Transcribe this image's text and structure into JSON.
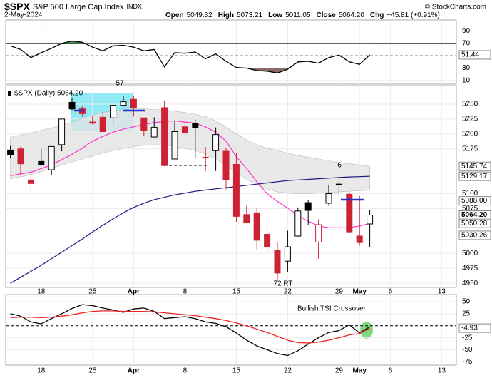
{
  "header": {
    "symbol": "$SPX",
    "name": "S&P 500 Large Cap Index",
    "exchange": "INDX",
    "date": "2-May-2024",
    "quote": [
      {
        "label": "Open",
        "value": "5049.32"
      },
      {
        "label": "High",
        "value": "5073.21"
      },
      {
        "label": "Low",
        "value": "5011.05"
      },
      {
        "label": "Close",
        "value": "5064.20"
      },
      {
        "label": "Chg",
        "value": "+45.81 (+0.91%)"
      }
    ],
    "copyright": "© StockCharts.com"
  },
  "chart_data": [
    {
      "type": "line",
      "ylim": [
        4,
        108
      ],
      "yticks": [
        10,
        30,
        70,
        90
      ],
      "levels": [
        30,
        70
      ],
      "dashed_levels": [
        50
      ],
      "last_value": 51.44,
      "overbought_color": "#4e7d52",
      "oversold_color": "#8c6b66",
      "series": [
        {
          "color": "#000000",
          "values": [
            66,
            60,
            47,
            55,
            62,
            70,
            74,
            72,
            64,
            58,
            66,
            67,
            64,
            58,
            60,
            32,
            55,
            54,
            56,
            45,
            53,
            41,
            31,
            30,
            26,
            25,
            22,
            28,
            40,
            41,
            38,
            47,
            51,
            40,
            36,
            51.44
          ]
        }
      ]
    },
    {
      "type": "candlestick",
      "legend": "$SPX (Daily) 5064.20",
      "x": [
        "2024-03-13",
        "2024-03-14",
        "2024-03-15",
        "2024-03-18",
        "2024-03-19",
        "2024-03-20",
        "2024-03-21",
        "2024-03-22",
        "2024-03-25",
        "2024-03-26",
        "2024-03-27",
        "2024-03-28",
        "2024-04-01",
        "2024-04-02",
        "2024-04-03",
        "2024-04-04",
        "2024-04-05",
        "2024-04-08",
        "2024-04-09",
        "2024-04-10",
        "2024-04-11",
        "2024-04-12",
        "2024-04-15",
        "2024-04-16",
        "2024-04-17",
        "2024-04-18",
        "2024-04-19",
        "2024-04-22",
        "2024-04-23",
        "2024-04-24",
        "2024-04-25",
        "2024-04-26",
        "2024-04-29",
        "2024-04-30",
        "2024-05-01",
        "2024-05-02"
      ],
      "xticks": [
        {
          "value": "2024-03-18",
          "label": "18"
        },
        {
          "value": "2024-03-25",
          "label": "25"
        },
        {
          "value": "2024-04-01",
          "label": "Apr"
        },
        {
          "value": "2024-04-08",
          "label": "8"
        },
        {
          "value": "2024-04-15",
          "label": "15"
        },
        {
          "value": "2024-04-22",
          "label": "22"
        },
        {
          "value": "2024-04-29",
          "label": "29"
        },
        {
          "value": "2024-05-01",
          "label": "May"
        },
        {
          "value": "2024-05-06",
          "label": "6"
        },
        {
          "value": "2024-05-13",
          "label": "13"
        }
      ],
      "open": [
        5173,
        5175,
        5123,
        5154,
        5140,
        5182,
        5253,
        5242,
        5220,
        5228,
        5227,
        5248,
        5258,
        5227,
        5195,
        5244,
        5158,
        5212,
        5218,
        5160,
        5172,
        5171,
        5149,
        5065,
        5068,
        5032,
        5005,
        4987,
        5029,
        5085,
        5019,
        5084,
        5115,
        5099,
        5029,
        5049.32
      ],
      "high": [
        5180,
        5179,
        5136,
        5175,
        5180,
        5225,
        5261,
        5246,
        5230,
        5236,
        5249,
        5264,
        5264,
        5227,
        5228,
        5256,
        5222,
        5220,
        5224,
        5178,
        5211,
        5176,
        5168,
        5080,
        5077,
        5046,
        5019,
        5038,
        5077,
        5089,
        5057,
        5115,
        5124,
        5103,
        5096,
        5073.21
      ],
      "low": [
        5159,
        5131,
        5104,
        5146,
        5131,
        5171,
        5240,
        5229,
        5216,
        5203,
        5213,
        5246,
        5229,
        5196,
        5194,
        5146,
        5158,
        5198,
        5160,
        5138,
        5138,
        5107,
        5053,
        5053,
        5007,
        5001,
        4953,
        4969,
        5028,
        5047,
        4991,
        5080,
        5095,
        5035,
        5013,
        5011.05
      ],
      "close": [
        5165,
        5150,
        5117,
        5149,
        5179,
        5225,
        5242,
        5234,
        5218,
        5204,
        5248,
        5254,
        5244,
        5206,
        5211,
        5147,
        5204,
        5202,
        5210,
        5161,
        5199,
        5123,
        5062,
        5051,
        5022,
        5011,
        4967,
        5011,
        5071,
        5072,
        5048,
        5100,
        5116,
        5036,
        5018,
        5064.2
      ],
      "up_color": "#000000",
      "down_color": "#cc2233",
      "overlays": [
        {
          "color": "#ff33cc",
          "values": [
            5130,
            5133,
            5136,
            5142,
            5148,
            5157,
            5166,
            5176,
            5188,
            5196,
            5203,
            5208,
            5212,
            5216,
            5219,
            5221,
            5222,
            5220,
            5218,
            5212,
            5203,
            5188,
            5162,
            5142,
            5120,
            5100,
            5087,
            5076,
            5063,
            5054,
            5046,
            5043,
            5043,
            5043,
            5046,
            5050.28
          ]
        },
        {
          "color": "#1a1a80",
          "values": [
            4950,
            4960,
            4970,
            4980,
            4991,
            5002,
            5013,
            5024,
            5036,
            5047,
            5058,
            5068,
            5077,
            5084,
            5090,
            5094,
            5098,
            5101,
            5104,
            5106,
            5108,
            5110,
            5112,
            5114,
            5116,
            5118,
            5120,
            5122,
            5123,
            5124,
            5125,
            5126,
            5127,
            5128,
            5128.5,
            5129.17
          ]
        }
      ],
      "band": {
        "color": "#e4e4e4",
        "upper": [
          5195,
          5198,
          5202,
          5206,
          5210,
          5215,
          5220,
          5226,
          5232,
          5236,
          5239,
          5241,
          5242,
          5242,
          5241,
          5240,
          5238,
          5236,
          5233,
          5229,
          5222,
          5212,
          5200,
          5190,
          5182,
          5176,
          5172,
          5168,
          5164,
          5161,
          5158,
          5155,
          5152,
          5150,
          5148,
          5145.74
        ],
        "lower": [
          5125,
          5128,
          5132,
          5137,
          5142,
          5148,
          5153,
          5158,
          5163,
          5168,
          5172,
          5176,
          5179,
          5181,
          5182,
          5181,
          5179,
          5176,
          5172,
          5166,
          5158,
          5148,
          5135,
          5124,
          5115,
          5108,
          5103,
          5101,
          5100,
          5100,
          5101,
          5102,
          5103,
          5104,
          5105,
          5106
        ]
      },
      "ylim": [
        4943,
        5281
      ],
      "yticks": [
        4950,
        4975,
        5000,
        5075,
        5100,
        5175,
        5200,
        5225,
        5250
      ],
      "price_labels": [
        5145.74,
        5129.17,
        {
          "value": 5088,
          "label": "5088.00"
        },
        {
          "value": 5064.2,
          "label": "5064.20"
        },
        5050.28,
        5030.26
      ],
      "annotations": [
        "57",
        "6",
        "72 RT"
      ]
    },
    {
      "type": "line",
      "ylim": [
        -82,
        65
      ],
      "yticks": [
        -75,
        -50,
        -25,
        25,
        50
      ],
      "dashed_levels": [
        0
      ],
      "last_value": -4.93,
      "annotation": "Bullish TSI Crossover",
      "series": [
        {
          "color": "#000000",
          "values": [
            25,
            20,
            8,
            4,
            15,
            25,
            36,
            44,
            42,
            37,
            33,
            28,
            35,
            37,
            30,
            15,
            17,
            19,
            15,
            8,
            5,
            -2,
            -15,
            -30,
            -42,
            -50,
            -58,
            -62,
            -52,
            -38,
            -25,
            -14,
            -10,
            2,
            -15,
            -2
          ]
        },
        {
          "color": "#ee2222",
          "values": [
            17,
            18,
            18,
            17,
            18,
            20,
            23,
            27,
            30,
            31,
            31,
            30,
            30,
            30,
            29,
            27,
            25,
            23,
            21,
            18,
            15,
            11,
            6,
            0,
            -7,
            -14,
            -22,
            -30,
            -35,
            -36,
            -34,
            -30,
            -25,
            -19,
            -16,
            -4.93
          ]
        }
      ]
    }
  ]
}
